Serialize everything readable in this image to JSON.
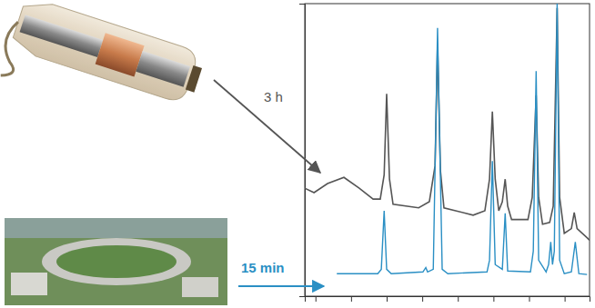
{
  "chart_data": {
    "type": "line",
    "xlim": [
      0,
      8
    ],
    "xticks": [
      0.3,
      1.3,
      2.3,
      3.3,
      4.3,
      5.3,
      6.3,
      7.3
    ],
    "ylim": [
      0,
      100
    ],
    "yticks": [],
    "tick_labels": false,
    "grid": false,
    "annotations": [
      {
        "text": "3 h",
        "color": "#555555"
      },
      {
        "text": "15 min",
        "color": "#2a8fc4"
      }
    ],
    "series": [
      {
        "color": "#555555",
        "x": [
          0.0,
          0.26,
          0.64,
          1.1,
          1.53,
          1.92,
          2.12,
          2.23,
          2.3,
          2.38,
          2.48,
          3.2,
          3.5,
          3.66,
          3.73,
          3.81,
          3.91,
          4.73,
          5.06,
          5.19,
          5.27,
          5.35,
          5.45,
          5.55,
          5.63,
          5.7,
          5.81,
          6.27,
          6.39,
          6.5,
          6.57,
          6.68,
          6.88,
          6.98,
          7.09,
          7.16,
          7.29,
          7.49,
          7.57,
          7.65,
          7.93,
          8.0
        ],
        "values": [
          36.9,
          35.4,
          38.5,
          40.6,
          36.9,
          33.2,
          33.2,
          41.5,
          69.2,
          40.0,
          31.4,
          30.2,
          32.3,
          44.6,
          86.2,
          43.1,
          30.2,
          27.7,
          29.2,
          40.0,
          63.1,
          40.0,
          29.2,
          32.3,
          40.0,
          30.8,
          26.2,
          26.2,
          33.8,
          68.6,
          33.8,
          24.6,
          25.2,
          30.8,
          98.5,
          33.8,
          21.5,
          23.1,
          28.6,
          23.1,
          20.0,
          19.1
        ]
      },
      {
        "color": "#2a8fc4",
        "x": [
          0.9,
          2.05,
          2.15,
          2.23,
          2.3,
          2.43,
          3.32,
          3.4,
          3.45,
          3.61,
          3.73,
          3.86,
          4.02,
          5.12,
          5.19,
          5.27,
          5.35,
          5.55,
          5.63,
          5.7,
          6.34,
          6.42,
          6.5,
          6.57,
          6.78,
          6.85,
          6.91,
          6.96,
          7.01,
          7.09,
          7.16,
          7.29,
          7.49,
          7.6,
          7.7,
          7.93
        ],
        "values": [
          7.7,
          7.7,
          9.2,
          29.2,
          9.2,
          7.7,
          8.3,
          9.8,
          8.3,
          9.2,
          91.7,
          9.2,
          7.7,
          8.3,
          12.3,
          46.2,
          10.8,
          9.2,
          28.3,
          8.6,
          8.3,
          15.4,
          76.9,
          12.3,
          8.3,
          10.8,
          18.5,
          10.8,
          15.4,
          100,
          12.3,
          7.7,
          8.3,
          18.5,
          7.7,
          7.4
        ]
      }
    ]
  }
}
